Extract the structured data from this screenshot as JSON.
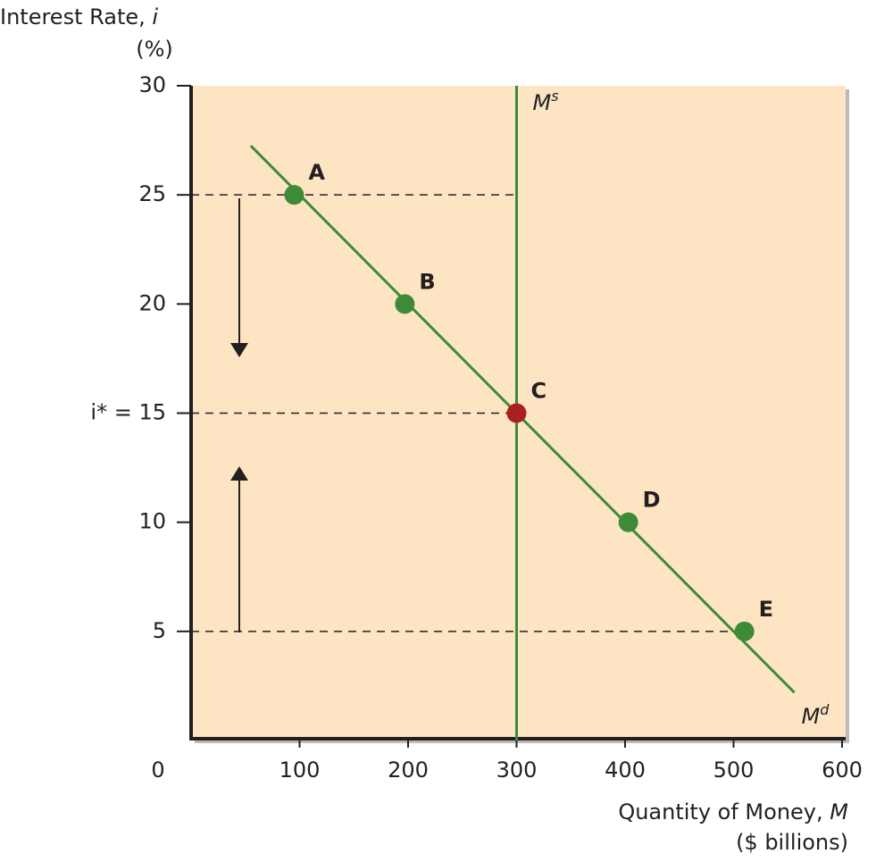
{
  "chart_data": {
    "type": "line",
    "ylabel": {
      "text": "Interest Rate,",
      "var": "i",
      "unit": "(%)"
    },
    "xlabel": {
      "text": "Quantity of Money,",
      "var": "M",
      "unit": "($ billions)"
    },
    "xlim": [
      0,
      600
    ],
    "ylim": [
      0,
      30
    ],
    "xticks": [
      0,
      100,
      200,
      300,
      400,
      500,
      600
    ],
    "yticks": [
      5,
      10,
      {
        "value": 15,
        "label": "i* = 15"
      },
      20,
      25,
      30
    ],
    "background": "#fde5c4",
    "series": [
      {
        "name": "M",
        "name_sup": "d",
        "color": "#3d8b37",
        "x": [
          55,
          556
        ],
        "values": [
          27.25,
          2.2
        ]
      },
      {
        "name": "M",
        "name_sup": "s",
        "color": "#3d8b37",
        "x": [
          300,
          300
        ],
        "values": [
          0,
          30
        ]
      }
    ],
    "points": {
      "labels": [
        "A",
        "B",
        "C",
        "D",
        "E"
      ],
      "x": [
        95,
        197,
        300,
        403,
        510
      ],
      "values": [
        25,
        20,
        15,
        10,
        5
      ],
      "colors": [
        "#3d8b37",
        "#3d8b37",
        "#a8201f",
        "#3d8b37",
        "#3d8b37"
      ]
    }
  }
}
